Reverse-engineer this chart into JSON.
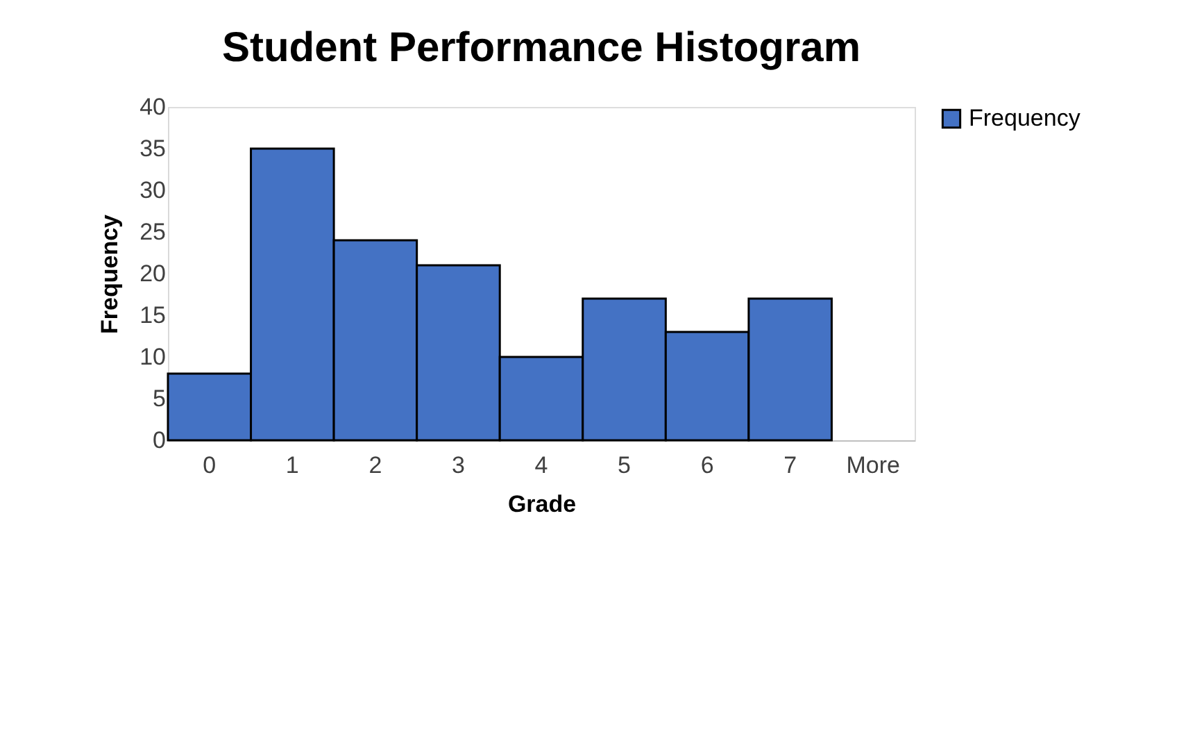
{
  "chart_data": {
    "type": "bar",
    "title": "Student Performance Histogram",
    "xlabel": "Grade",
    "ylabel": "Frequency",
    "categories": [
      "0",
      "1",
      "2",
      "3",
      "4",
      "5",
      "6",
      "7",
      "More"
    ],
    "series": [
      {
        "name": "Frequency",
        "color": "#4472c4",
        "values": [
          8,
          35,
          24,
          21,
          10,
          17,
          13,
          17,
          null
        ]
      }
    ],
    "ylim": [
      0,
      40
    ],
    "yticks": [
      0,
      5,
      10,
      15,
      20,
      25,
      30,
      35,
      40
    ],
    "grid": false,
    "legend": "right"
  }
}
